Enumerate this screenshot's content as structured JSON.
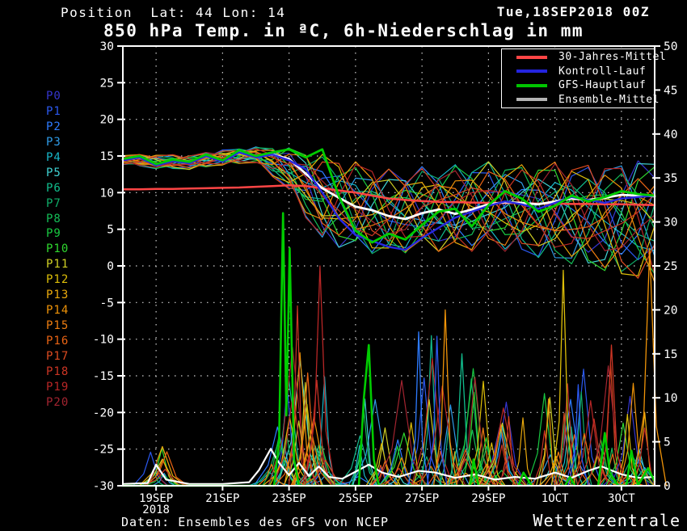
{
  "header": {
    "position_label": "Position",
    "lat": "Lat: 44",
    "lon": "Lon: 14",
    "run_datetime": "Tue,18SEP2018 00Z",
    "title": "850 hPa Temp. in ªC, 6h-Niederschlag in mm"
  },
  "members": {
    "labels": [
      "P0",
      "P1",
      "P2",
      "P3",
      "P4",
      "P5",
      "P6",
      "P7",
      "P8",
      "P9",
      "P10",
      "P11",
      "P12",
      "P13",
      "P14",
      "P15",
      "P16",
      "P17",
      "P18",
      "P19",
      "P20"
    ],
    "colors": [
      "#3535cf",
      "#2b59f0",
      "#2d7bff",
      "#2f9ce8",
      "#17b7c9",
      "#3fd2d2",
      "#11bd8d",
      "#0fae6a",
      "#14bd57",
      "#18c841",
      "#2fd72f",
      "#cfcf24",
      "#ddbe08",
      "#eaa90c",
      "#ef9308",
      "#ee7d10",
      "#ea6414",
      "#dd4b20",
      "#cc3524",
      "#b82626",
      "#a32430"
    ]
  },
  "legend": {
    "items": [
      {
        "label": "30-Jahres-Mittel",
        "color": "#ff4545"
      },
      {
        "label": "Kontroll-Lauf",
        "color": "#2424e0"
      },
      {
        "label": "GFS-Hauptlauf",
        "color": "#00c400"
      },
      {
        "label": "Ensemble-Mittel",
        "color": "#b4b4b4"
      }
    ]
  },
  "footer": {
    "source": "Daten: Ensembles des GFS von NCEP",
    "brand": "Wetterzentrale"
  },
  "chart_data": {
    "type": "line",
    "title": "850 hPa Temp. in ªC, 6h-Niederschlag in mm",
    "grid": true,
    "x_axis": {
      "range_days": [
        0,
        16
      ],
      "start_datetime": "Tue,18SEP2018 00Z",
      "tick_days": [
        1,
        3,
        5,
        7,
        9,
        11,
        13,
        15
      ],
      "tick_labels": [
        "19SEP",
        "21SEP",
        "23SEP",
        "25SEP",
        "27SEP",
        "29SEP",
        "1OCT",
        "3OCT"
      ],
      "year_label": "2018",
      "year_under_tick": 0
    },
    "y_left": {
      "name": "850 hPa temperature (C)",
      "min": -30,
      "max": 30,
      "step": 5,
      "ticks": [
        30,
        25,
        20,
        15,
        10,
        5,
        0,
        -5,
        -10,
        -15,
        -20,
        -25,
        -30
      ]
    },
    "y_right": {
      "name": "6h precipitation (mm)",
      "min": 0,
      "max": 50,
      "step": 5,
      "ticks": [
        50,
        45,
        40,
        35,
        30,
        25,
        20,
        15,
        10,
        5,
        0
      ]
    },
    "temp_series_step_days": 0.5,
    "temp_series": [
      {
        "id": "mean30y",
        "name": "30-Jahres-Mittel",
        "color": "#ff4545",
        "width": 2.5,
        "values": [
          10.45,
          10.45,
          10.5,
          10.5,
          10.55,
          10.6,
          10.65,
          10.7,
          10.8,
          10.9,
          11.0,
          10.9,
          10.6,
          10.3,
          10.0,
          9.6,
          9.2,
          9.0,
          8.85,
          8.75,
          8.7,
          8.65,
          8.6,
          8.58,
          8.55,
          8.5,
          8.5,
          8.45,
          8.45,
          8.4,
          8.4,
          8.35,
          8.3
        ]
      },
      {
        "id": "ensmean",
        "name": "Ensemble-Mittel",
        "color": "#ffffff",
        "width": 2.8,
        "values": [
          14.5,
          14.8,
          13.9,
          14.4,
          14.1,
          15.0,
          14.3,
          15.5,
          14.9,
          15.2,
          14.6,
          12.6,
          10.6,
          9.3,
          8.1,
          7.6,
          6.8,
          6.4,
          7.2,
          7.7,
          7.1,
          7.7,
          8.4,
          8.7,
          8.6,
          8.4,
          8.8,
          9.2,
          9.0,
          9.3,
          9.7,
          9.6,
          9.5
        ]
      },
      {
        "id": "control",
        "name": "Kontroll-Lauf",
        "color": "#2828e0",
        "width": 2.4,
        "values": [
          14.4,
          14.8,
          13.7,
          14.3,
          14.0,
          15.0,
          14.2,
          15.5,
          14.8,
          15.2,
          14.4,
          13.2,
          10.0,
          6.5,
          4.2,
          3.4,
          2.6,
          2.2,
          3.8,
          5.2,
          6.6,
          7.4,
          8.2,
          8.8,
          8.4,
          7.8,
          8.6,
          9.4,
          9.0,
          8.6,
          9.2,
          9.4,
          9.6
        ]
      },
      {
        "id": "main",
        "name": "GFS-Hauptlauf",
        "color": "#00cc00",
        "width": 2.8,
        "values": [
          14.6,
          15.0,
          13.9,
          14.5,
          14.2,
          15.2,
          14.4,
          15.8,
          15.0,
          15.5,
          15.9,
          14.8,
          15.9,
          9.5,
          4.8,
          3.2,
          4.4,
          3.6,
          5.6,
          7.4,
          7.8,
          5.4,
          8.3,
          10.2,
          9.2,
          7.4,
          8.2,
          9.6,
          8.8,
          9.4,
          10.2,
          9.8,
          9.6
        ]
      }
    ],
    "ensemble": {
      "count": 21,
      "envelope_days": [
        0,
        1,
        2,
        3,
        4,
        5,
        6,
        7,
        8,
        9,
        10,
        11,
        12,
        13,
        14,
        15,
        16
      ],
      "temp_envelope": [
        [
          13.8,
          15.2
        ],
        [
          13.2,
          15.3
        ],
        [
          13.1,
          15.2
        ],
        [
          13.7,
          15.9
        ],
        [
          14.0,
          16.3
        ],
        [
          10.0,
          16.3
        ],
        [
          2.5,
          15.6
        ],
        [
          1.8,
          14.6
        ],
        [
          0.8,
          13.6
        ],
        [
          2.0,
          13.9
        ],
        [
          1.2,
          14.2
        ],
        [
          2.0,
          14.6
        ],
        [
          1.2,
          14.2
        ],
        [
          0.2,
          14.6
        ],
        [
          -0.5,
          14.3
        ],
        [
          -2.0,
          14.6
        ],
        [
          -3.0,
          15.2
        ]
      ]
    },
    "precip": {
      "main_segments": [
        [
          [
            0,
            0
          ],
          [
            4.55,
            0
          ],
          [
            4.7,
            5
          ],
          [
            4.82,
            31
          ],
          [
            4.92,
            8
          ],
          [
            5.02,
            27
          ],
          [
            5.15,
            3
          ],
          [
            5.3,
            0
          ],
          [
            7.1,
            0
          ],
          [
            7.25,
            10
          ],
          [
            7.4,
            16
          ],
          [
            7.55,
            3
          ],
          [
            7.7,
            0
          ],
          [
            10.45,
            0
          ],
          [
            10.55,
            3
          ],
          [
            10.7,
            0
          ],
          [
            11.2,
            0
          ]
        ],
        [
          [
            11.9,
            0
          ],
          [
            12.05,
            1.5
          ],
          [
            12.3,
            0
          ]
        ],
        [
          [
            13.3,
            0
          ],
          [
            13.45,
            1
          ],
          [
            13.6,
            0
          ]
        ],
        [
          [
            14.3,
            0
          ],
          [
            14.5,
            6
          ],
          [
            14.65,
            1.5
          ],
          [
            14.9,
            0
          ],
          [
            15.15,
            0
          ],
          [
            15.3,
            4
          ],
          [
            15.5,
            0
          ],
          [
            15.8,
            2
          ],
          [
            16,
            0.5
          ]
        ]
      ],
      "ensmean_points": [
        [
          0,
          0.2
        ],
        [
          0.75,
          0.3
        ],
        [
          1.0,
          2.4
        ],
        [
          1.3,
          0.7
        ],
        [
          2,
          0.2
        ],
        [
          3,
          0.2
        ],
        [
          3.8,
          0.4
        ],
        [
          4.1,
          1.8
        ],
        [
          4.45,
          4.2
        ],
        [
          4.7,
          2.6
        ],
        [
          5.0,
          1.2
        ],
        [
          5.3,
          2.6
        ],
        [
          5.6,
          1.1
        ],
        [
          5.9,
          2.2
        ],
        [
          6.2,
          1.0
        ],
        [
          6.6,
          0.8
        ],
        [
          7.0,
          1.6
        ],
        [
          7.4,
          2.4
        ],
        [
          7.8,
          1.5
        ],
        [
          8.3,
          1.0
        ],
        [
          8.9,
          1.7
        ],
        [
          9.4,
          1.5
        ],
        [
          10.0,
          0.9
        ],
        [
          10.6,
          1.3
        ],
        [
          11.2,
          0.7
        ],
        [
          11.8,
          1.0
        ],
        [
          12.4,
          0.8
        ],
        [
          13.0,
          1.5
        ],
        [
          13.5,
          0.9
        ],
        [
          14.0,
          1.7
        ],
        [
          14.4,
          2.2
        ],
        [
          15.0,
          1.3
        ],
        [
          15.5,
          0.9
        ],
        [
          16,
          1.0
        ]
      ],
      "member_events": [
        {
          "center": 1.05,
          "width": 0.6,
          "max": 4.5
        },
        {
          "center": 4.9,
          "width": 1.3,
          "max": 21
        },
        {
          "center": 5.9,
          "width": 0.9,
          "max": 14
        },
        {
          "center": 7.3,
          "width": 1.2,
          "max": 12
        },
        {
          "center": 8.9,
          "width": 1.4,
          "max": 18
        },
        {
          "center": 10.2,
          "width": 1.3,
          "max": 14
        },
        {
          "center": 11.5,
          "width": 1.2,
          "max": 10
        },
        {
          "center": 13.1,
          "width": 1.0,
          "max": 12
        },
        {
          "center": 14.3,
          "width": 1.2,
          "max": 14
        },
        {
          "center": 15.5,
          "width": 0.9,
          "max": 12
        }
      ],
      "highlight_spikes": [
        {
          "color": "#b82626",
          "day": 5.93,
          "peak": 25,
          "width": 0.45
        },
        {
          "color": "#ddbe08",
          "day": 13.25,
          "peak": 24.5,
          "width": 0.35
        },
        {
          "color": "#cc3524",
          "day": 14.7,
          "peak": 16,
          "width": 0.4
        },
        {
          "color": "#11bd8d",
          "day": 10.2,
          "peak": 15,
          "width": 0.4
        },
        {
          "color": "#ef9308",
          "day": 15.85,
          "peak": 27,
          "width": 0.5
        },
        {
          "color": "#2d7bff",
          "day": 8.9,
          "peak": 17.5,
          "width": 0.3
        },
        {
          "color": "#2b59f0",
          "day": 9.45,
          "peak": 17,
          "width": 0.3
        },
        {
          "color": "#ef9308",
          "day": 9.7,
          "peak": 20,
          "width": 0.35
        },
        {
          "color": "#2b59f0",
          "day": 13.7,
          "peak": 11.5,
          "width": 0.3
        }
      ]
    }
  }
}
